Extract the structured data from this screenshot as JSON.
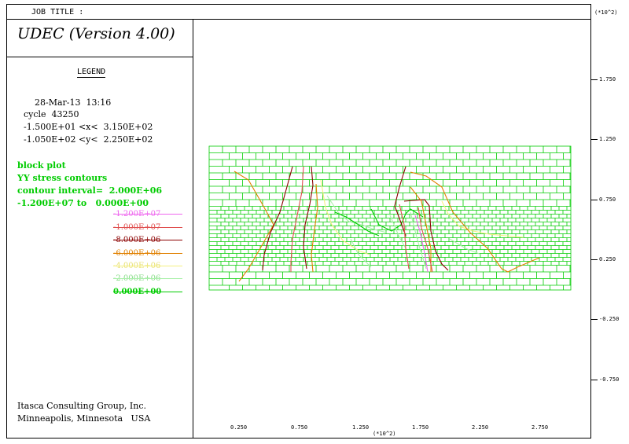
{
  "header": {
    "job_title": "JOB TITLE :",
    "program_title": "UDEC (Version 4.00)"
  },
  "legend": {
    "heading": "LEGEND",
    "date_time": "28-Mar-13  13:16",
    "cycle": "cycle  43250",
    "x_range": "-1.500E+01 <x<  3.150E+02",
    "y_range": "-1.050E+02 <y<  2.250E+02",
    "plot_items": [
      "block plot",
      "YY stress contours",
      "contour interval=  2.000E+06",
      "-1.200E+07 to   0.000E+00"
    ],
    "contours": [
      {
        "label": "-1.200E+07",
        "color": "#ee66ee"
      },
      {
        "label": "-1.000E+07",
        "color": "#e05050"
      },
      {
        "label": "-8.000E+06",
        "color": "#8b0000"
      },
      {
        "label": "-6.000E+06",
        "color": "#e08000"
      },
      {
        "label": "-4.000E+06",
        "color": "#f5f080"
      },
      {
        "label": "-2.000E+06",
        "color": "#aaf0aa"
      },
      {
        "label": "0.000E+00",
        "color": "#00cc00"
      }
    ]
  },
  "company": {
    "line1": "Itasca Consulting Group, Inc.",
    "line2": "Minneapolis, Minnesota   USA"
  },
  "axes": {
    "y_multiplier": "(*10^2)",
    "y_ticks": [
      "1.750",
      "1.250",
      "0.750",
      "0.250",
      "-0.250",
      "-0.750"
    ],
    "x_multiplier": "(*10^2)",
    "x_ticks": [
      "0.250",
      "0.750",
      "1.250",
      "1.750",
      "2.250",
      "2.750"
    ]
  },
  "colors": {
    "block": "#00cc00",
    "frame": "#000000"
  }
}
